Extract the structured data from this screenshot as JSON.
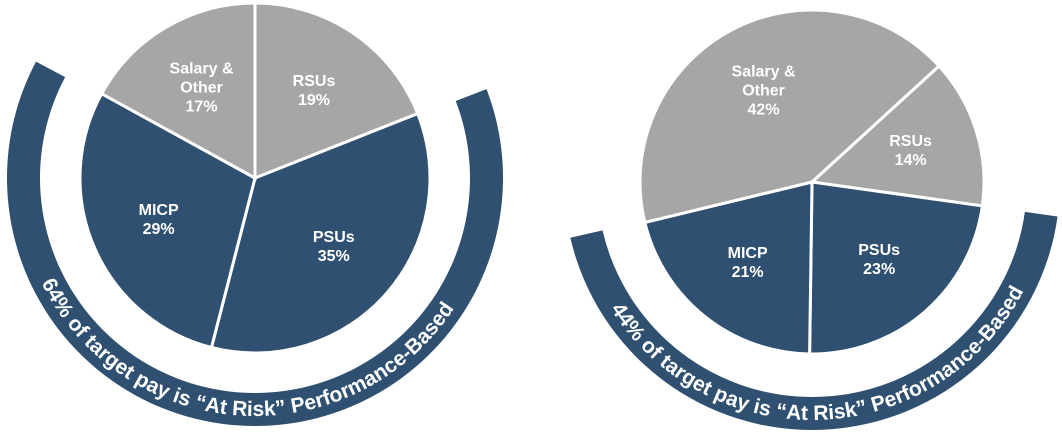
{
  "chart_data": [
    {
      "type": "pie",
      "categories": [
        "RSUs",
        "PSUs",
        "MICP",
        "Salary & Other"
      ],
      "values": [
        19,
        35,
        29,
        17
      ],
      "value_labels": [
        "19%",
        "35%",
        "29%",
        "17%"
      ],
      "colors": [
        "#a6a6a6",
        "#2f5071",
        "#2f5071",
        "#a6a6a6"
      ],
      "annotation": "64% of target pay is “At Risk” Performance-Based",
      "annotation_color": "#2f5071"
    },
    {
      "type": "pie",
      "categories": [
        "RSUs",
        "PSUs",
        "MICP",
        "Salary & Other"
      ],
      "values": [
        14,
        23,
        21,
        42
      ],
      "value_labels": [
        "14%",
        "23%",
        "21%",
        "42%"
      ],
      "colors": [
        "#a6a6a6",
        "#2f5071",
        "#2f5071",
        "#a6a6a6"
      ],
      "annotation": "44% of target pay is “At Risk” Performance-Based",
      "annotation_color": "#2f5071"
    }
  ]
}
